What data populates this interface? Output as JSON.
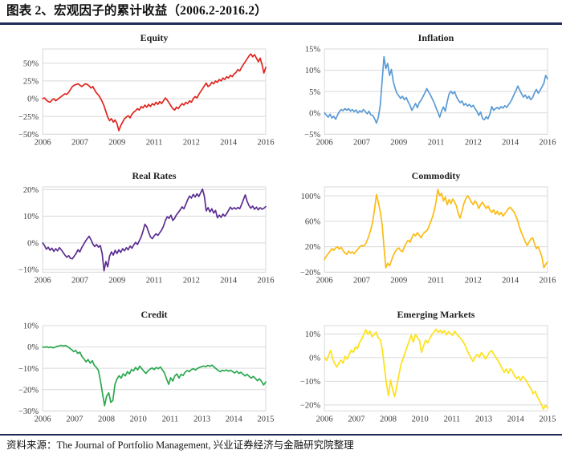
{
  "header": {
    "title": "图表 2、宏观因子的累计收益（2006.2-2016.2）"
  },
  "footer": {
    "source": "资料来源：The Journal of Portfolio Management, 兴业证券经济与金融研究院整理"
  },
  "style": {
    "accent_rule_color": "#1e2b58",
    "grid_color": "#d9d9d9",
    "tick_text_color": "#3d3d3d",
    "line_width": 1.7
  },
  "chart_data": [
    {
      "type": "line",
      "title": "Equity",
      "color": "#e0251f",
      "legend": "none",
      "grid": "horizontal",
      "ylim": [
        -50,
        70
      ],
      "ytick_vals": [
        50,
        25,
        0,
        -25,
        -50
      ],
      "ytick_labels": [
        "50%",
        "25%",
        "0%",
        "−25%",
        "−50%"
      ],
      "xlabels": [
        "2006",
        "2007",
        "2009",
        "2011",
        "2012",
        "2014",
        "2016"
      ],
      "values": [
        0,
        1,
        -2,
        -4,
        -5,
        -2,
        0,
        -3,
        -1,
        1,
        3,
        5,
        7,
        6,
        9,
        13,
        17,
        19,
        20,
        21,
        19,
        17,
        19,
        21,
        20,
        18,
        15,
        17,
        12,
        8,
        5,
        1,
        -4,
        -10,
        -18,
        -26,
        -31,
        -28,
        -33,
        -30,
        -35,
        -45,
        -38,
        -33,
        -28,
        -26,
        -24,
        -27,
        -22,
        -19,
        -17,
        -14,
        -16,
        -11,
        -13,
        -9,
        -12,
        -8,
        -11,
        -7,
        -9,
        -5,
        -8,
        -4,
        -7,
        -3,
        1,
        -2,
        -6,
        -10,
        -14,
        -16,
        -12,
        -14,
        -10,
        -7,
        -9,
        -5,
        -7,
        -3,
        -5,
        0,
        3,
        1,
        6,
        10,
        14,
        18,
        22,
        17,
        19,
        23,
        21,
        25,
        23,
        27,
        25,
        29,
        27,
        31,
        29,
        33,
        31,
        35,
        37,
        41,
        39,
        44,
        48,
        52,
        56,
        60,
        63,
        59,
        62,
        57,
        52,
        57,
        48,
        36,
        44
      ]
    },
    {
      "type": "line",
      "title": "Inflation",
      "color": "#5b9bd5",
      "legend": "none",
      "grid": "horizontal",
      "ylim": [
        -5,
        15
      ],
      "ytick_vals": [
        15,
        10,
        5,
        0,
        -5
      ],
      "ytick_labels": [
        "15%",
        "10%",
        "5%",
        "0%",
        "−5%"
      ],
      "xlabels": [
        "2006",
        "2007",
        "2009",
        "2011",
        "2012",
        "2014",
        "2016"
      ],
      "values": [
        0,
        -0.5,
        -1,
        -0.3,
        -1.2,
        -0.8,
        -1.5,
        -0.5,
        0.3,
        0.8,
        0.5,
        1,
        0.6,
        1,
        0.4,
        0.8,
        0.3,
        0.7,
        0,
        0.5,
        0.2,
        0.8,
        0.3,
        -0.2,
        0.4,
        -0.5,
        -0.6,
        -1.4,
        -2.4,
        -1,
        1.8,
        7.5,
        13.2,
        10.4,
        11.6,
        8.8,
        10.2,
        7.4,
        5.8,
        4.6,
        4,
        3.4,
        3.9,
        3.1,
        3.6,
        2.6,
        1.8,
        0.6,
        1.4,
        2.2,
        1.2,
        2.4,
        3,
        3.8,
        4.7,
        5.7,
        4.9,
        4.2,
        3.3,
        2.4,
        1.2,
        0.2,
        -1,
        0.4,
        1.4,
        0.4,
        2.6,
        4.4,
        5.1,
        4.5,
        5,
        3.8,
        3,
        2.4,
        2.8,
        1.8,
        2.2,
        1.6,
        2,
        1.4,
        1.8,
        1,
        0.4,
        -0.6,
        0.2,
        -1.3,
        -1.6,
        -0.9,
        -1.4,
        -0.3,
        1.5,
        0.6,
        1,
        1.3,
        0.9,
        1.5,
        1.1,
        1.7,
        1.3,
        1.9,
        2.5,
        3.3,
        4.3,
        5.2,
        6.3,
        5.4,
        4.5,
        3.7,
        4.2,
        3.4,
        3.9,
        3.1,
        3.6,
        4.7,
        5.5,
        4.6,
        5.3,
        6.1,
        6.9,
        8.8,
        8
      ]
    },
    {
      "type": "line",
      "title": "Real Rates",
      "color": "#5c2e91",
      "legend": "none",
      "grid": "horizontal",
      "ylim": [
        -11,
        21
      ],
      "ytick_vals": [
        20,
        10,
        0,
        -10
      ],
      "ytick_labels": [
        "20%",
        "10%",
        "0%",
        "−10%"
      ],
      "xlabels": [
        "2006",
        "2007",
        "2009",
        "2011",
        "2012",
        "2014",
        "2016"
      ],
      "values": [
        0,
        -1,
        -2.4,
        -1.6,
        -2.8,
        -2,
        -3.2,
        -2.2,
        -3,
        -1.8,
        -2.6,
        -3.6,
        -4.6,
        -5.4,
        -4.8,
        -5.8,
        -6,
        -5,
        -4,
        -2.6,
        -3.4,
        -1.8,
        -0.6,
        0.6,
        1.6,
        2.5,
        1.2,
        -0.4,
        -1.4,
        -0.6,
        -1.6,
        -1,
        -4,
        -10.5,
        -7,
        -9,
        -5,
        -3.4,
        -4.6,
        -2.8,
        -4,
        -2.6,
        -3.6,
        -2.2,
        -3,
        -1.8,
        -2.6,
        -1.2,
        -2,
        -0.8,
        0.2,
        -0.6,
        0.8,
        2.2,
        4.5,
        7,
        6,
        4,
        2.2,
        1.6,
        2.6,
        3.4,
        2.8,
        3.8,
        4.8,
        6.2,
        8.4,
        9.8,
        9.2,
        10.4,
        8.4,
        9.2,
        10.6,
        11.4,
        12.4,
        13.5,
        12.8,
        14.4,
        16.2,
        17.6,
        16.8,
        18.2,
        17.2,
        18.4,
        17.4,
        18.8,
        20.2,
        17.5,
        12,
        13.2,
        11.6,
        12.8,
        11.2,
        12.2,
        9.4,
        10.4,
        9.6,
        10.8,
        10,
        11,
        12.2,
        13.4,
        12.6,
        13.2,
        12.7,
        13.3,
        12.8,
        14.4,
        16.2,
        18,
        15.6,
        14,
        13,
        13.8,
        12.6,
        13.4,
        12.4,
        13.2,
        12.6,
        13,
        13.6
      ]
    },
    {
      "type": "line",
      "title": "Commodity",
      "color": "#fcbb13",
      "legend": "none",
      "grid": "horizontal",
      "ylim": [
        -20,
        114
      ],
      "ytick_vals": [
        100,
        60,
        20,
        -20
      ],
      "ytick_labels": [
        "100%",
        "60%",
        "20%",
        "−20%"
      ],
      "xlabels": [
        "2006",
        "2007",
        "2009",
        "2011",
        "2012",
        "2014",
        "2016"
      ],
      "values": [
        0,
        5,
        9,
        13,
        17,
        14,
        18,
        20,
        16,
        19,
        14,
        10,
        8,
        13,
        10,
        12,
        9,
        13,
        16,
        20,
        22,
        21,
        24,
        30,
        38,
        48,
        60,
        80,
        102,
        90,
        75,
        55,
        20,
        -13,
        -6,
        -10,
        -2,
        6,
        12,
        16,
        18,
        14,
        12,
        20,
        26,
        30,
        27,
        34,
        40,
        37,
        42,
        38,
        34,
        40,
        43,
        45,
        50,
        58,
        66,
        76,
        90,
        110,
        100,
        104,
        92,
        98,
        86,
        94,
        88,
        95,
        90,
        84,
        72,
        65,
        76,
        88,
        95,
        100,
        96,
        90,
        86,
        92,
        88,
        80,
        86,
        90,
        85,
        80,
        84,
        78,
        74,
        78,
        71,
        76,
        70,
        74,
        68,
        72,
        76,
        80,
        82,
        78,
        75,
        68,
        60,
        50,
        42,
        35,
        28,
        22,
        27,
        32,
        34,
        25,
        17,
        20,
        12,
        4,
        -13,
        -8,
        -4
      ]
    },
    {
      "type": "line",
      "title": "Credit",
      "color": "#2ca84f",
      "legend": "none",
      "grid": "horizontal",
      "ylim": [
        -30,
        10
      ],
      "ytick_vals": [
        10,
        0,
        -10,
        -20,
        -30
      ],
      "ytick_labels": [
        "10%",
        "0%",
        "−10%",
        "−20%",
        "−30%"
      ],
      "xlabels": [
        "2006",
        "2007",
        "2008",
        "2010",
        "2011",
        "2013",
        "2014",
        "2015"
      ],
      "values": [
        0,
        -0.2,
        0.1,
        -0.3,
        0,
        -0.4,
        -0.1,
        0.3,
        0.5,
        0.8,
        0.4,
        0.7,
        0.2,
        -0.5,
        -1.2,
        -2.2,
        -1.6,
        -3,
        -2.4,
        -4.4,
        -5.6,
        -7,
        -5.9,
        -7.6,
        -6.4,
        -8.6,
        -9.6,
        -11,
        -16,
        -22,
        -27.5,
        -23,
        -21.5,
        -26,
        -25,
        -17.5,
        -15,
        -13.5,
        -14.6,
        -12.6,
        -13.6,
        -11.6,
        -12.6,
        -10.6,
        -11.2,
        -9.6,
        -10.8,
        -9,
        -10.2,
        -11.4,
        -12.4,
        -11.2,
        -10.4,
        -9.8,
        -10.6,
        -9.6,
        -10.2,
        -9.4,
        -10.8,
        -12.2,
        -15,
        -17.5,
        -14.4,
        -16,
        -13.6,
        -12.6,
        -14.6,
        -12.8,
        -13.4,
        -11.8,
        -11,
        -11.6,
        -10.6,
        -10.2,
        -10.8,
        -10,
        -9.6,
        -9.2,
        -8.9,
        -9.3,
        -8.6,
        -9.1,
        -8.5,
        -9.4,
        -10.2,
        -11,
        -11.6,
        -10.9,
        -11.2,
        -10.8,
        -11.4,
        -10.9,
        -11.6,
        -12.2,
        -11.4,
        -12.4,
        -11.8,
        -12.8,
        -13.6,
        -12.8,
        -13.8,
        -14.6,
        -13.8,
        -14.8,
        -15.8,
        -14.9,
        -16.2,
        -17.8,
        -16.4
      ]
    },
    {
      "type": "line",
      "title": "Emerging Markets",
      "color": "#fee117",
      "legend": "none",
      "grid": "horizontal",
      "ylim": [
        -22.5,
        13.5
      ],
      "ytick_vals": [
        10,
        0,
        -10,
        -20
      ],
      "ytick_labels": [
        "10%",
        "0%",
        "−10%",
        "−20%"
      ],
      "xlabels": [
        "2006",
        "2007",
        "2008",
        "2010",
        "2011",
        "2013",
        "2014",
        "2015"
      ],
      "values": [
        0,
        -1.2,
        1,
        3,
        -0.5,
        -2.6,
        -4,
        -2.2,
        -1,
        -2.4,
        0.6,
        -0.6,
        1.4,
        3.2,
        2.2,
        4.6,
        3.8,
        6.4,
        7.8,
        9.6,
        11.8,
        9.8,
        11.2,
        8.8,
        9.6,
        10.8,
        8.4,
        7.6,
        3.5,
        -4,
        -11,
        -16,
        -9.5,
        -13.5,
        -16.5,
        -12,
        -7.5,
        -3,
        -0.5,
        2,
        4.5,
        7,
        9.5,
        6.5,
        9.8,
        8.6,
        7.2,
        2.2,
        5,
        7.4,
        6.2,
        8.2,
        9.6,
        10.8,
        12,
        10.6,
        11.6,
        10.4,
        11.4,
        9.6,
        11,
        10.2,
        9.4,
        11.2,
        10,
        9,
        8.2,
        6.8,
        5.4,
        3.2,
        1.4,
        -0.4,
        -1.6,
        0.4,
        1.4,
        0.2,
        2.2,
        1,
        -0.6,
        0.8,
        2.4,
        2.9,
        1.4,
        0,
        -1.2,
        -2.8,
        -4.6,
        -6.2,
        -4.8,
        -6.6,
        -4.7,
        -5.8,
        -7.6,
        -8.8,
        -8,
        -9.6,
        -7.9,
        -8.8,
        -10.2,
        -11.8,
        -13.2,
        -15.2,
        -14.2,
        -16.5,
        -18,
        -19.5,
        -21.8,
        -20.2,
        -21
      ]
    }
  ]
}
